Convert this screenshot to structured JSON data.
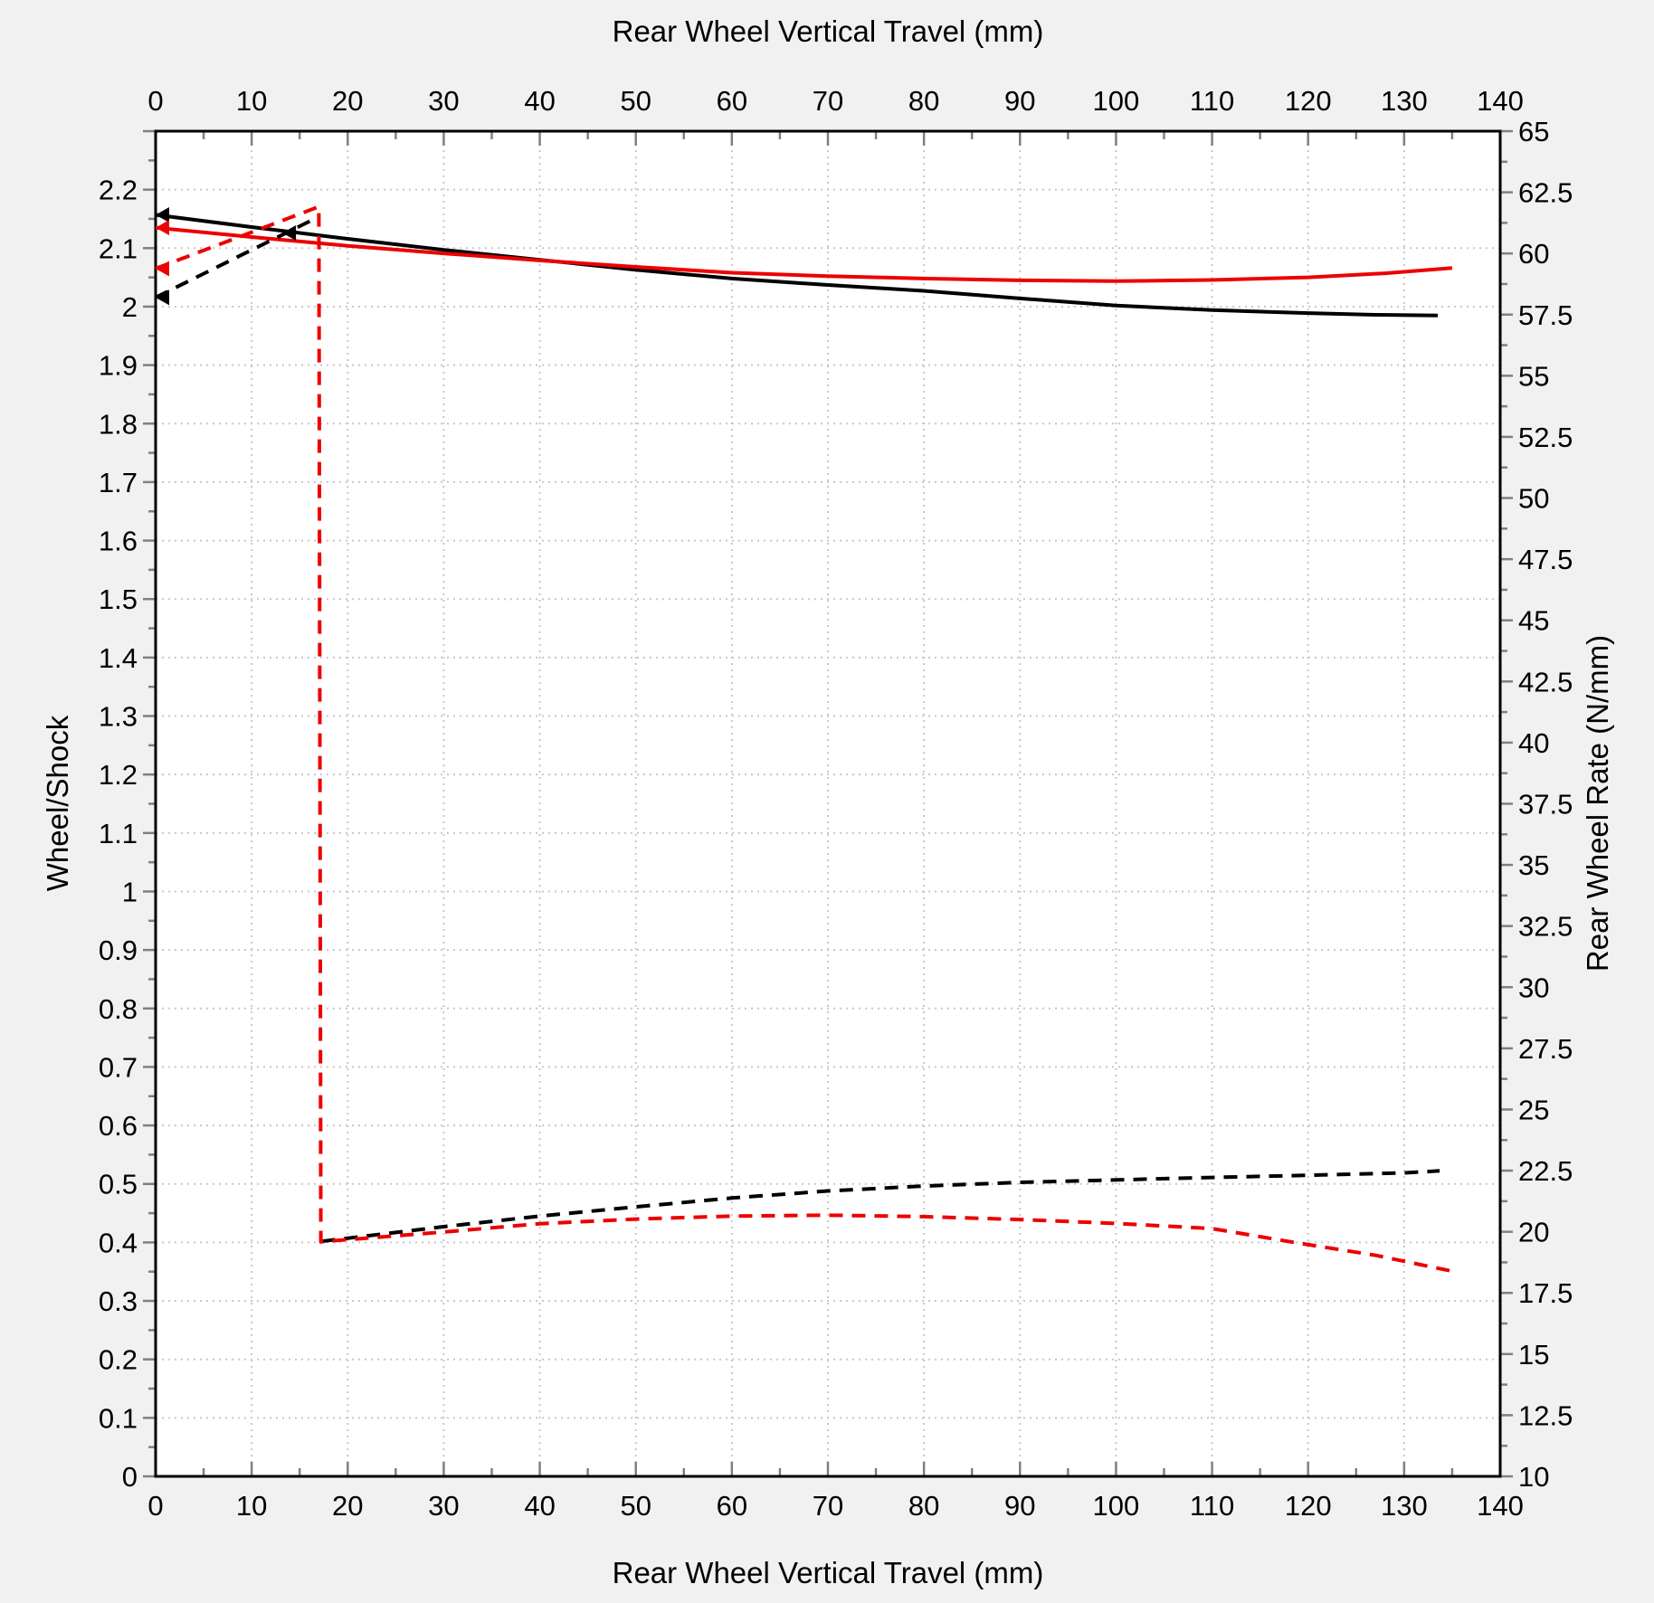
{
  "figure": {
    "top_axis_title": "Rear Wheel Vertical Travel (mm)",
    "bottom_axis_title": "Rear Wheel Vertical Travel (mm)",
    "left_axis_title": "Wheel/Shock",
    "right_axis_title": "Rear Wheel Rate (N/mm)"
  },
  "colors": {
    "background": "#f1f1f1",
    "plot_background": "#ffffff",
    "frame": "#000000",
    "grid": "#c8c8c8",
    "tick": "#808080",
    "label": "#000000",
    "series_black": "#000000",
    "series_red": "#ed0000"
  },
  "chart_data": {
    "type": "line",
    "legend": false,
    "grid": true,
    "x_axis": {
      "label": "Rear Wheel Vertical Travel (mm)",
      "min": 0,
      "max": 140,
      "major_step": 10,
      "minor_step": 5,
      "tick_values": [
        0,
        10,
        20,
        30,
        40,
        50,
        60,
        70,
        80,
        90,
        100,
        110,
        120,
        130,
        140
      ],
      "tick_labels": [
        "0",
        "10",
        "20",
        "30",
        "40",
        "50",
        "60",
        "70",
        "80",
        "90",
        "100",
        "110",
        "120",
        "130",
        "140"
      ]
    },
    "y_left": {
      "label": "Wheel/Shock",
      "min": 0,
      "max": 2.3,
      "major_step": 0.1,
      "minor_step": 0.05,
      "tick_values": [
        0,
        0.1,
        0.2,
        0.3,
        0.4,
        0.5,
        0.6,
        0.7,
        0.8,
        0.9,
        1,
        1.1,
        1.2,
        1.3,
        1.4,
        1.5,
        1.6,
        1.7,
        1.8,
        1.9,
        2,
        2.1,
        2.2
      ],
      "tick_labels": [
        "0",
        "0.1",
        "0.2",
        "0.3",
        "0.4",
        "0.5",
        "0.6",
        "0.7",
        "0.8",
        "0.9",
        "1",
        "1.1",
        "1.2",
        "1.3",
        "1.4",
        "1.5",
        "1.6",
        "1.7",
        "1.8",
        "1.9",
        "2",
        "2.1",
        "2.2"
      ]
    },
    "y_right": {
      "label": "Rear Wheel Rate (N/mm)",
      "min": 10,
      "max": 65,
      "major_step": 2.5,
      "minor_step": 1.25,
      "tick_values": [
        10,
        12.5,
        15,
        17.5,
        20,
        22.5,
        25,
        27.5,
        30,
        32.5,
        35,
        37.5,
        40,
        42.5,
        45,
        47.5,
        50,
        52.5,
        55,
        57.5,
        60,
        62.5,
        65
      ],
      "tick_labels": [
        "10",
        "12.5",
        "15",
        "17.5",
        "20",
        "22.5",
        "25",
        "27.5",
        "30",
        "32.5",
        "35",
        "37.5",
        "40",
        "42.5",
        "45",
        "47.5",
        "50",
        "52.5",
        "55",
        "57.5",
        "60",
        "62.5",
        "65"
      ]
    },
    "series": [
      {
        "name": "leverage-ratio-black",
        "axis": "left",
        "style": "solid",
        "color": "#000000",
        "x": [
          0,
          10,
          20,
          30,
          40,
          50,
          60,
          70,
          80,
          90,
          100,
          110,
          120,
          127,
          133.5
        ],
        "y": [
          2.157,
          2.136,
          2.116,
          2.097,
          2.08,
          2.063,
          2.048,
          2.037,
          2.027,
          2.014,
          2.002,
          1.994,
          1.989,
          1.986,
          1.985
        ]
      },
      {
        "name": "leverage-ratio-red",
        "axis": "left",
        "style": "solid",
        "color": "#ed0000",
        "x": [
          0,
          10,
          20,
          30,
          40,
          50,
          60,
          70,
          80,
          90,
          100,
          110,
          120,
          128,
          135
        ],
        "y": [
          2.135,
          2.119,
          2.104,
          2.091,
          2.079,
          2.068,
          2.058,
          2.052,
          2.048,
          2.045,
          2.0435,
          2.0455,
          2.05,
          2.057,
          2.066
        ]
      },
      {
        "name": "wheel-rate-black-initial",
        "axis": "right",
        "style": "dashed",
        "color": "#000000",
        "x": [
          0,
          17
        ],
        "y": [
          58.2,
          61.5
        ]
      },
      {
        "name": "wheel-rate-black-main",
        "axis": "right",
        "style": "dashed",
        "color": "#000000",
        "x": [
          17.3,
          30,
          40,
          50,
          60,
          70,
          80,
          90,
          100,
          110,
          120,
          130,
          133.7
        ],
        "y": [
          19.61,
          20.21,
          20.64,
          21.02,
          21.38,
          21.67,
          21.87,
          22.02,
          22.12,
          22.22,
          22.31,
          22.41,
          22.49
        ]
      },
      {
        "name": "wheel-rate-red",
        "axis": "right",
        "style": "dashed",
        "color": "#ed0000",
        "x": [
          0,
          17,
          17.2,
          30,
          40,
          50,
          60,
          70,
          80,
          90,
          100,
          110,
          118.5,
          127,
          135
        ],
        "y": [
          59.38,
          61.91,
          19.59,
          19.99,
          20.33,
          20.52,
          20.64,
          20.68,
          20.62,
          20.5,
          20.34,
          20.13,
          19.57,
          19.04,
          18.39
        ]
      }
    ],
    "start_markers": [
      {
        "name": "arrow-leverage-black",
        "axis": "left",
        "x": 0,
        "value": 2.157,
        "color": "#000000"
      },
      {
        "name": "arrow-leverage-red",
        "axis": "left",
        "x": 0,
        "value": 2.135,
        "color": "#ed0000"
      },
      {
        "name": "arrow-rate-red",
        "axis": "right",
        "x": 0,
        "value": 59.38,
        "color": "#ed0000"
      },
      {
        "name": "arrow-rate-black",
        "axis": "right",
        "x": 0,
        "value": 58.2,
        "color": "#000000"
      },
      {
        "name": "arrow-mid-black",
        "axis": "left",
        "x": 13.2,
        "value": 2.126,
        "color": "#000000"
      }
    ]
  }
}
